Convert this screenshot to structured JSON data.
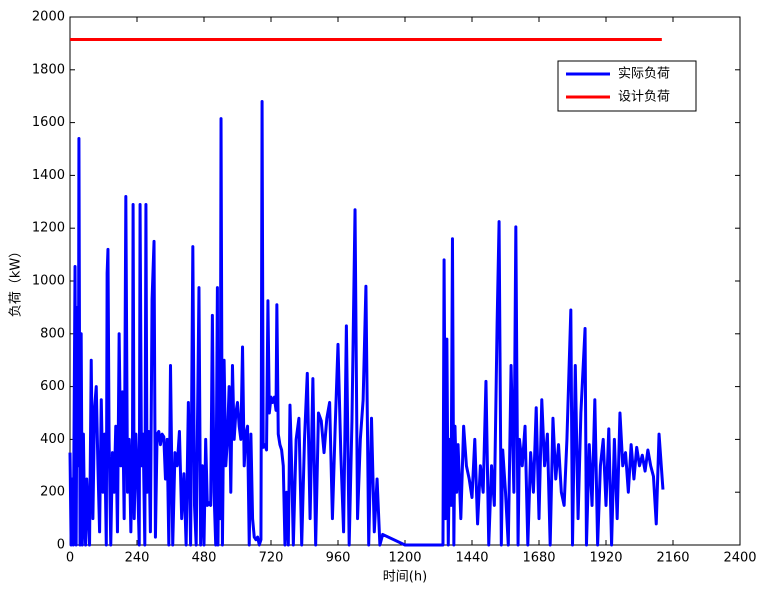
{
  "chart_data": {
    "type": "line",
    "x_label": "时间(h)",
    "y_label": "负荷（kW）",
    "x": [
      0,
      4,
      8,
      12,
      16,
      18,
      22,
      26,
      30,
      32,
      36,
      40,
      44,
      48,
      52,
      56,
      60,
      64,
      70,
      76,
      82,
      88,
      94,
      100,
      106,
      112,
      118,
      124,
      130,
      133,
      136,
      140,
      146,
      152,
      158,
      164,
      170,
      176,
      182,
      188,
      194,
      200,
      206,
      212,
      218,
      224,
      226,
      230,
      236,
      242,
      248,
      251,
      256,
      262,
      268,
      272,
      276,
      282,
      288,
      294,
      301,
      306,
      312,
      318,
      324,
      330,
      336,
      342,
      348,
      354,
      360,
      368,
      376,
      384,
      392,
      400,
      408,
      416,
      424,
      432,
      440,
      446,
      452,
      462,
      468,
      474,
      480,
      486,
      492,
      498,
      504,
      510,
      516,
      522,
      528,
      530,
      534,
      538,
      541,
      546,
      552,
      558,
      564,
      570,
      576,
      582,
      588,
      594,
      600,
      606,
      612,
      618,
      624,
      630,
      636,
      642,
      648,
      654,
      660,
      666,
      672,
      678,
      684,
      688,
      692,
      698,
      704,
      709,
      714,
      720,
      726,
      732,
      738,
      741,
      746,
      752,
      758,
      764,
      770,
      776,
      782,
      788,
      794,
      800,
      810,
      820,
      830,
      840,
      850,
      860,
      870,
      880,
      890,
      900,
      910,
      920,
      930,
      940,
      950,
      960,
      970,
      980,
      990,
      1000,
      1010,
      1021,
      1030,
      1040,
      1050,
      1060,
      1070,
      1080,
      1090,
      1100,
      1110,
      1120,
      1200,
      1300,
      1336,
      1340,
      1345,
      1350,
      1355,
      1360,
      1365,
      1370,
      1375,
      1379,
      1385,
      1390,
      1400,
      1410,
      1420,
      1430,
      1440,
      1450,
      1460,
      1470,
      1480,
      1490,
      1500,
      1510,
      1520,
      1530,
      1537,
      1545,
      1550,
      1560,
      1570,
      1580,
      1590,
      1597,
      1605,
      1610,
      1620,
      1630,
      1640,
      1650,
      1660,
      1670,
      1680,
      1690,
      1700,
      1710,
      1720,
      1730,
      1740,
      1750,
      1760,
      1770,
      1780,
      1794,
      1800,
      1810,
      1820,
      1830,
      1845,
      1850,
      1860,
      1870,
      1880,
      1890,
      1900,
      1910,
      1920,
      1930,
      1940,
      1950,
      1960,
      1970,
      1980,
      1990,
      2000,
      2010,
      2020,
      2030,
      2040,
      2050,
      2060,
      2070,
      2080,
      2090,
      2100,
      2110,
      2124
    ],
    "series": [
      {
        "name": "实际负荷",
        "color": "#0000ff",
        "values": [
          350,
          0,
          250,
          0,
          700,
          1055,
          0,
          900,
          300,
          1540,
          0,
          800,
          0,
          420,
          100,
          0,
          250,
          150,
          0,
          700,
          100,
          520,
          600,
          300,
          50,
          550,
          200,
          420,
          0,
          1030,
          1120,
          400,
          0,
          350,
          200,
          450,
          50,
          800,
          300,
          580,
          100,
          1320,
          200,
          400,
          50,
          430,
          1290,
          100,
          420,
          250,
          0,
          1290,
          300,
          420,
          0,
          1290,
          200,
          430,
          50,
          930,
          1150,
          30,
          420,
          430,
          380,
          420,
          410,
          250,
          400,
          0,
          680,
          0,
          350,
          300,
          430,
          100,
          270,
          0,
          540,
          0,
          1130,
          150,
          0,
          975,
          0,
          300,
          0,
          400,
          150,
          160,
          150,
          870,
          200,
          0,
          975,
          0,
          480,
          100,
          1615,
          0,
          700,
          300,
          400,
          600,
          200,
          680,
          400,
          500,
          540,
          450,
          400,
          750,
          300,
          420,
          450,
          0,
          420,
          100,
          30,
          20,
          30,
          0,
          20,
          1680,
          370,
          380,
          360,
          925,
          500,
          560,
          540,
          560,
          510,
          910,
          420,
          380,
          360,
          300,
          0,
          200,
          0,
          530,
          300,
          0,
          400,
          480,
          0,
          400,
          650,
          100,
          630,
          0,
          500,
          470,
          350,
          480,
          540,
          100,
          450,
          760,
          350,
          50,
          830,
          0,
          470,
          1270,
          100,
          400,
          550,
          980,
          0,
          480,
          50,
          250,
          0,
          40,
          0,
          0,
          0,
          1080,
          100,
          780,
          0,
          400,
          150,
          1160,
          0,
          450,
          200,
          380,
          100,
          450,
          300,
          250,
          180,
          400,
          80,
          300,
          200,
          620,
          0,
          300,
          150,
          840,
          1225,
          0,
          360,
          200,
          0,
          680,
          200,
          1205,
          0,
          400,
          300,
          450,
          0,
          350,
          200,
          520,
          100,
          550,
          300,
          420,
          0,
          480,
          250,
          380,
          200,
          150,
          400,
          890,
          0,
          680,
          100,
          500,
          820,
          0,
          380,
          150,
          550,
          0,
          300,
          400,
          150,
          440,
          0,
          400,
          100,
          500,
          300,
          350,
          200,
          380,
          250,
          370,
          300,
          340,
          280,
          360,
          300,
          260,
          80,
          420,
          210
        ]
      },
      {
        "name": "设计负荷",
        "color": "#ff0000",
        "x": [
          0,
          2120
        ],
        "values": [
          1915,
          1915
        ]
      }
    ],
    "xlim": [
      0,
      2400
    ],
    "ylim": [
      0,
      2000
    ],
    "xticks": [
      0,
      240,
      480,
      720,
      960,
      1200,
      1440,
      1680,
      1920,
      2160,
      2400
    ],
    "yticks": [
      0,
      200,
      400,
      600,
      800,
      1000,
      1200,
      1400,
      1600,
      1800,
      2000
    ],
    "grid": false,
    "legend": "upper right"
  }
}
